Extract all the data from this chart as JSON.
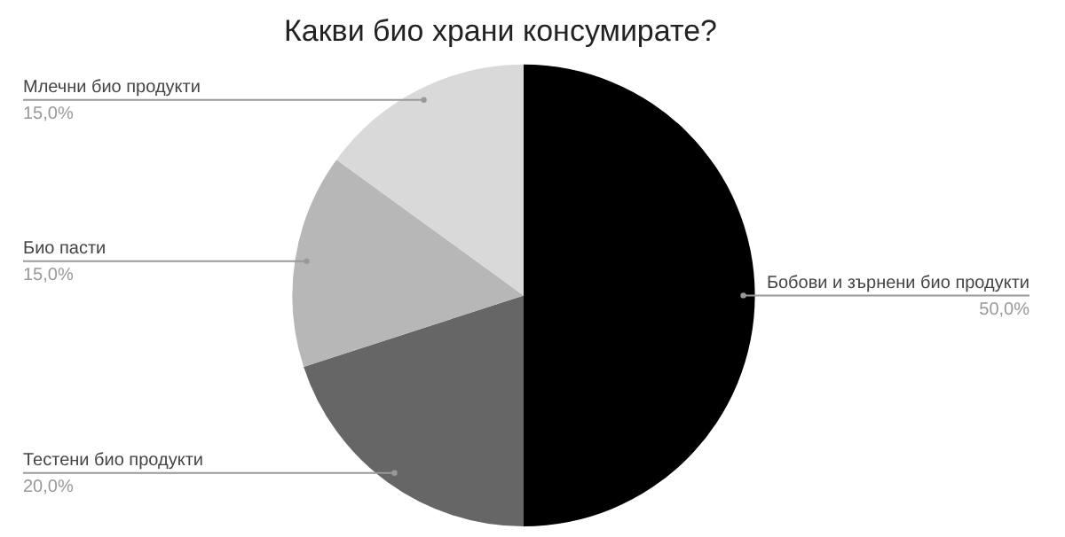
{
  "chart_data": {
    "type": "pie",
    "title": "Какви био храни консумирате?",
    "categories": [
      "Бобови и зърнени био продукти",
      "Тестени био продукти",
      "Био пасти",
      "Млечни био продукти"
    ],
    "values": [
      50,
      20,
      15,
      15
    ],
    "colors": [
      "#000000",
      "#666666",
      "#b7b7b7",
      "#d9d9d9"
    ],
    "value_labels": [
      "50,0%",
      "20,0%",
      "15,0%",
      "15,0%"
    ],
    "legend": false
  }
}
